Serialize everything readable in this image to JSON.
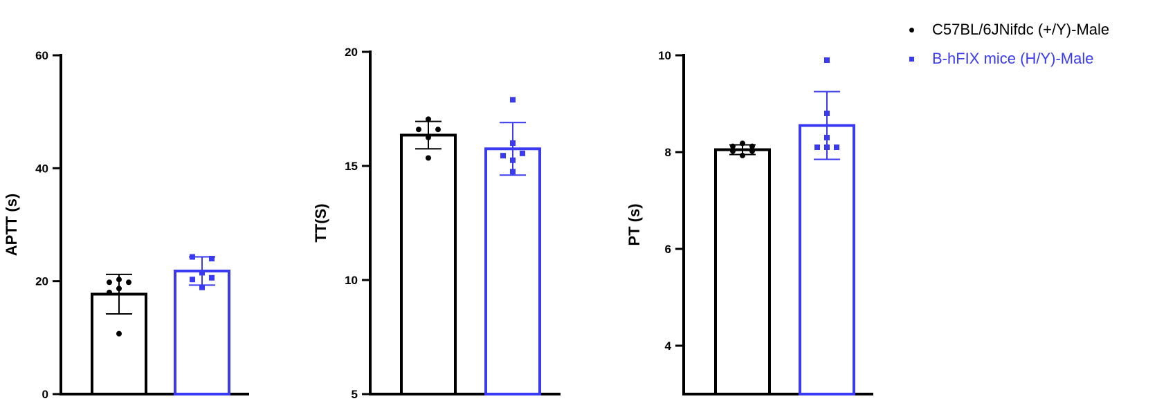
{
  "legend": [
    {
      "label": "C57BL/6JNifdc (+/Y)-Male",
      "color": "#000000",
      "marker": "circle"
    },
    {
      "label": "B-hFIX mice (H/Y)-Male",
      "color": "#3a3af2",
      "marker": "square"
    }
  ],
  "chart_data": [
    {
      "type": "bar",
      "ylabel": "APTT (s)",
      "ylim": [
        0,
        60
      ],
      "yticks": [
        0,
        20,
        40,
        60
      ],
      "series": [
        {
          "name": "C57BL/6JNifdc (+/Y)-Male",
          "color": "#000000",
          "mean": 17.7,
          "sd": 3.5,
          "points": [
            {
              "x": -1,
              "y": 19.8
            },
            {
              "x": 0,
              "y": 20.3
            },
            {
              "x": 1,
              "y": 19.8
            },
            {
              "x": 0,
              "y": 18.7
            },
            {
              "x": -1,
              "y": 18.0
            },
            {
              "x": 0,
              "y": 10.7
            }
          ]
        },
        {
          "name": "B-hFIX mice (H/Y)-Male",
          "color": "#3a3af2",
          "mean": 21.8,
          "sd": 2.5,
          "points": [
            {
              "x": -1,
              "y": 24.3
            },
            {
              "x": 1,
              "y": 24.0
            },
            {
              "x": 0,
              "y": 21.5
            },
            {
              "x": -1,
              "y": 20.3
            },
            {
              "x": 1,
              "y": 20.6
            },
            {
              "x": 0,
              "y": 18.9
            }
          ]
        }
      ]
    },
    {
      "type": "bar",
      "ylabel": "TT(S)",
      "ylim": [
        5,
        20
      ],
      "yticks": [
        5,
        10,
        15,
        20
      ],
      "series": [
        {
          "name": "C57BL/6JNifdc (+/Y)-Male",
          "color": "#000000",
          "mean": 16.35,
          "sd": 0.6,
          "points": [
            {
              "x": 0,
              "y": 17.05
            },
            {
              "x": -1,
              "y": 16.6
            },
            {
              "x": 1,
              "y": 16.6
            },
            {
              "x": 0,
              "y": 16.25
            },
            {
              "x": 0,
              "y": 15.35
            }
          ]
        },
        {
          "name": "B-hFIX mice (H/Y)-Male",
          "color": "#3a3af2",
          "mean": 15.75,
          "sd": 1.15,
          "points": [
            {
              "x": 0,
              "y": 17.9
            },
            {
              "x": 0,
              "y": 16.0
            },
            {
              "x": -1,
              "y": 15.45
            },
            {
              "x": 1,
              "y": 15.55
            },
            {
              "x": 0,
              "y": 15.25
            },
            {
              "x": 0,
              "y": 14.75
            }
          ]
        }
      ]
    },
    {
      "type": "bar",
      "ylabel": "PT (s)",
      "ylim": [
        3,
        10.5
      ],
      "yticks": [
        4,
        6,
        8,
        10
      ],
      "series": [
        {
          "name": "C57BL/6JNifdc (+/Y)-Male",
          "color": "#000000",
          "mean": 8.05,
          "sd": 0.1,
          "points": [
            {
              "x": 0,
              "y": 8.18
            },
            {
              "x": -1,
              "y": 8.12
            },
            {
              "x": 1,
              "y": 8.12
            },
            {
              "x": -1,
              "y": 8.02
            },
            {
              "x": 1,
              "y": 8.02
            },
            {
              "x": 0,
              "y": 7.93
            }
          ]
        },
        {
          "name": "B-hFIX mice (H/Y)-Male",
          "color": "#3a3af2",
          "mean": 8.55,
          "sd": 0.7,
          "points": [
            {
              "x": 0,
              "y": 9.9
            },
            {
              "x": 0,
              "y": 8.8
            },
            {
              "x": 0,
              "y": 8.3
            },
            {
              "x": -1,
              "y": 8.1
            },
            {
              "x": 0,
              "y": 8.1
            },
            {
              "x": 1,
              "y": 8.1
            }
          ]
        }
      ]
    }
  ]
}
